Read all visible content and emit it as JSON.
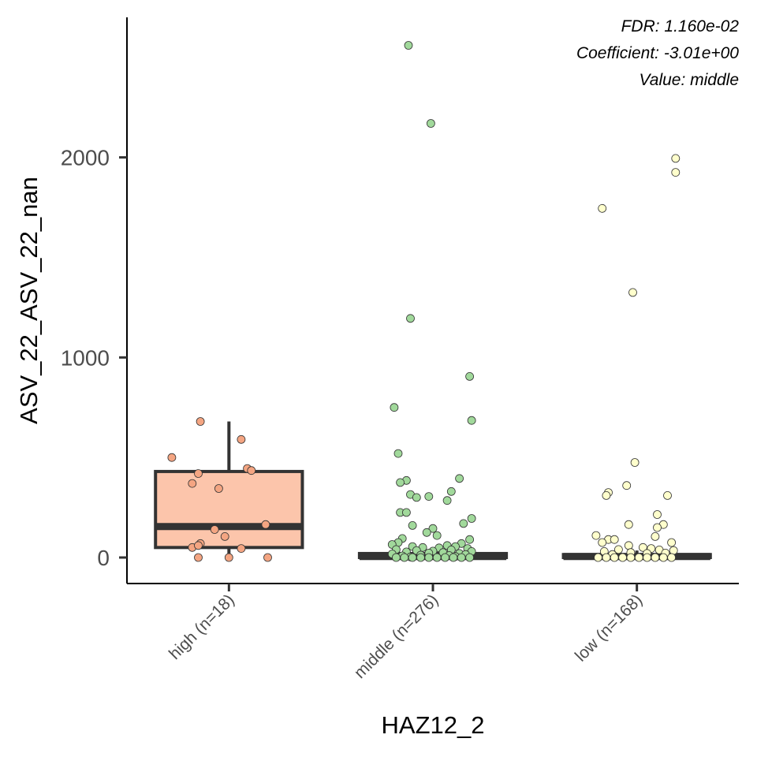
{
  "chart_data": {
    "type": "boxplot",
    "xlabel": "HAZ12_2",
    "ylabel": "ASV_22_ASV_22_nan",
    "ylim": [
      -130,
      2700
    ],
    "yticks": [
      0,
      1000,
      2000
    ],
    "grid": false,
    "legend": "none",
    "annotations": [
      "FDR: 1.160e-02",
      "Coefficient: -3.01e+00",
      "Value: middle"
    ],
    "categories": [
      "high (n=18)",
      "middle (n=276)",
      "low (n=168)"
    ],
    "colors": {
      "box_fills": [
        "#fcc5ab",
        "#c7e9c0",
        "#ffffcc"
      ],
      "point_fills": [
        "#f4a582",
        "#a1d99b",
        "#ffffcc"
      ],
      "outline": "#333333"
    },
    "boxes": [
      {
        "name": "high (n=18)",
        "q1": 50,
        "median": 155,
        "q3": 430,
        "whisker_low": 0,
        "whisker_high": 680
      },
      {
        "name": "middle (n=276)",
        "q1": 0,
        "median": 5,
        "q3": 20,
        "whisker_low": 0,
        "whisker_high": 45
      },
      {
        "name": "low (n=168)",
        "q1": 0,
        "median": 5,
        "q3": 15,
        "whisker_low": 0,
        "whisker_high": 35
      }
    ],
    "points": [
      {
        "group": 0,
        "x": -0.28,
        "y": 500
      },
      {
        "group": 0,
        "x": -0.14,
        "y": 680
      },
      {
        "group": 0,
        "x": 0.06,
        "y": 590
      },
      {
        "group": 0,
        "x": -0.15,
        "y": 420
      },
      {
        "group": 0,
        "x": -0.18,
        "y": 370
      },
      {
        "group": 0,
        "x": -0.05,
        "y": 345
      },
      {
        "group": 0,
        "x": 0.09,
        "y": 445
      },
      {
        "group": 0,
        "x": 0.11,
        "y": 435
      },
      {
        "group": 0,
        "x": 0.18,
        "y": 165
      },
      {
        "group": 0,
        "x": -0.07,
        "y": 140
      },
      {
        "group": 0,
        "x": -0.02,
        "y": 105
      },
      {
        "group": 0,
        "x": -0.14,
        "y": 70
      },
      {
        "group": 0,
        "x": -0.18,
        "y": 50
      },
      {
        "group": 0,
        "x": 0.06,
        "y": 45
      },
      {
        "group": 0,
        "x": -0.15,
        "y": 60
      },
      {
        "group": 0,
        "x": -0.15,
        "y": 0
      },
      {
        "group": 0,
        "x": 0.0,
        "y": 0
      },
      {
        "group": 0,
        "x": 0.19,
        "y": 0
      },
      {
        "group": 1,
        "x": -0.12,
        "y": 2560
      },
      {
        "group": 1,
        "x": -0.01,
        "y": 2170
      },
      {
        "group": 1,
        "x": -0.11,
        "y": 1195
      },
      {
        "group": 1,
        "x": 0.18,
        "y": 905
      },
      {
        "group": 1,
        "x": -0.19,
        "y": 750
      },
      {
        "group": 1,
        "x": 0.19,
        "y": 685
      },
      {
        "group": 1,
        "x": -0.17,
        "y": 520
      },
      {
        "group": 1,
        "x": 0.13,
        "y": 395
      },
      {
        "group": 1,
        "x": -0.13,
        "y": 385
      },
      {
        "group": 1,
        "x": -0.16,
        "y": 375
      },
      {
        "group": 1,
        "x": 0.09,
        "y": 330
      },
      {
        "group": 1,
        "x": -0.11,
        "y": 315
      },
      {
        "group": 1,
        "x": -0.08,
        "y": 300
      },
      {
        "group": 1,
        "x": -0.02,
        "y": 305
      },
      {
        "group": 1,
        "x": 0.07,
        "y": 285
      },
      {
        "group": 1,
        "x": -0.16,
        "y": 225
      },
      {
        "group": 1,
        "x": -0.13,
        "y": 225
      },
      {
        "group": 1,
        "x": 0.19,
        "y": 195
      },
      {
        "group": 1,
        "x": 0.15,
        "y": 170
      },
      {
        "group": 1,
        "x": -0.1,
        "y": 160
      },
      {
        "group": 1,
        "x": 0.0,
        "y": 145
      },
      {
        "group": 1,
        "x": -0.03,
        "y": 125
      },
      {
        "group": 1,
        "x": 0.02,
        "y": 110
      },
      {
        "group": 1,
        "x": -0.15,
        "y": 95
      },
      {
        "group": 1,
        "x": 0.18,
        "y": 90
      },
      {
        "group": 1,
        "x": -0.17,
        "y": 75
      },
      {
        "group": 1,
        "x": 0.14,
        "y": 70
      },
      {
        "group": 1,
        "x": -0.2,
        "y": 65
      },
      {
        "group": 1,
        "x": 0.07,
        "y": 60
      },
      {
        "group": 1,
        "x": -0.1,
        "y": 55
      },
      {
        "group": 1,
        "x": 0.11,
        "y": 55
      },
      {
        "group": 1,
        "x": -0.05,
        "y": 50
      },
      {
        "group": 1,
        "x": 0.03,
        "y": 48
      },
      {
        "group": 1,
        "x": 0.17,
        "y": 45
      },
      {
        "group": 1,
        "x": -0.18,
        "y": 40
      },
      {
        "group": 1,
        "x": 0.09,
        "y": 38
      },
      {
        "group": 1,
        "x": -0.08,
        "y": 35
      },
      {
        "group": 1,
        "x": 0.0,
        "y": 32
      },
      {
        "group": 1,
        "x": 0.19,
        "y": 30
      },
      {
        "group": 1,
        "x": -0.13,
        "y": 28
      },
      {
        "group": 1,
        "x": 0.05,
        "y": 25
      },
      {
        "group": 1,
        "x": -0.02,
        "y": 22
      },
      {
        "group": 1,
        "x": 0.13,
        "y": 20
      },
      {
        "group": 1,
        "x": -0.2,
        "y": 18
      },
      {
        "group": 1,
        "x": 0.16,
        "y": 15
      },
      {
        "group": 1,
        "x": -0.06,
        "y": 12
      },
      {
        "group": 1,
        "x": 0.08,
        "y": 10
      },
      {
        "group": 1,
        "x": -0.15,
        "y": 8
      },
      {
        "group": 1,
        "x": 0.11,
        "y": 5
      },
      {
        "group": 1,
        "x": -0.11,
        "y": 3
      },
      {
        "group": 1,
        "x": -0.18,
        "y": 0
      },
      {
        "group": 1,
        "x": -0.14,
        "y": 0
      },
      {
        "group": 1,
        "x": -0.1,
        "y": 0
      },
      {
        "group": 1,
        "x": -0.06,
        "y": 0
      },
      {
        "group": 1,
        "x": -0.02,
        "y": 0
      },
      {
        "group": 1,
        "x": 0.02,
        "y": 0
      },
      {
        "group": 1,
        "x": 0.06,
        "y": 0
      },
      {
        "group": 1,
        "x": 0.1,
        "y": 0
      },
      {
        "group": 1,
        "x": 0.14,
        "y": 0
      },
      {
        "group": 1,
        "x": 0.18,
        "y": 0
      },
      {
        "group": 2,
        "x": -0.17,
        "y": 1745
      },
      {
        "group": 2,
        "x": 0.19,
        "y": 1995
      },
      {
        "group": 2,
        "x": 0.19,
        "y": 1925
      },
      {
        "group": 2,
        "x": -0.02,
        "y": 1325
      },
      {
        "group": 2,
        "x": -0.01,
        "y": 475
      },
      {
        "group": 2,
        "x": -0.05,
        "y": 360
      },
      {
        "group": 2,
        "x": -0.14,
        "y": 325
      },
      {
        "group": 2,
        "x": -0.15,
        "y": 310
      },
      {
        "group": 2,
        "x": 0.15,
        "y": 310
      },
      {
        "group": 2,
        "x": 0.1,
        "y": 215
      },
      {
        "group": 2,
        "x": 0.13,
        "y": 165
      },
      {
        "group": 2,
        "x": -0.04,
        "y": 165
      },
      {
        "group": 2,
        "x": 0.1,
        "y": 150
      },
      {
        "group": 2,
        "x": -0.2,
        "y": 110
      },
      {
        "group": 2,
        "x": 0.09,
        "y": 105
      },
      {
        "group": 2,
        "x": -0.14,
        "y": 90
      },
      {
        "group": 2,
        "x": -0.11,
        "y": 90
      },
      {
        "group": 2,
        "x": -0.17,
        "y": 75
      },
      {
        "group": 2,
        "x": 0.17,
        "y": 75
      },
      {
        "group": 2,
        "x": -0.04,
        "y": 60
      },
      {
        "group": 2,
        "x": 0.03,
        "y": 50
      },
      {
        "group": 2,
        "x": 0.07,
        "y": 45
      },
      {
        "group": 2,
        "x": -0.09,
        "y": 40
      },
      {
        "group": 2,
        "x": 0.11,
        "y": 38
      },
      {
        "group": 2,
        "x": 0.18,
        "y": 35
      },
      {
        "group": 2,
        "x": -0.16,
        "y": 30
      },
      {
        "group": 2,
        "x": -0.03,
        "y": 25
      },
      {
        "group": 2,
        "x": 0.14,
        "y": 22
      },
      {
        "group": 2,
        "x": 0.05,
        "y": 20
      },
      {
        "group": 2,
        "x": -0.12,
        "y": 15
      },
      {
        "group": 2,
        "x": -0.19,
        "y": 0
      },
      {
        "group": 2,
        "x": -0.15,
        "y": 0
      },
      {
        "group": 2,
        "x": -0.11,
        "y": 0
      },
      {
        "group": 2,
        "x": -0.07,
        "y": 0
      },
      {
        "group": 2,
        "x": -0.03,
        "y": 0
      },
      {
        "group": 2,
        "x": 0.01,
        "y": 0
      },
      {
        "group": 2,
        "x": 0.05,
        "y": 0
      },
      {
        "group": 2,
        "x": 0.09,
        "y": 0
      },
      {
        "group": 2,
        "x": 0.13,
        "y": 0
      },
      {
        "group": 2,
        "x": 0.17,
        "y": 0
      }
    ]
  }
}
